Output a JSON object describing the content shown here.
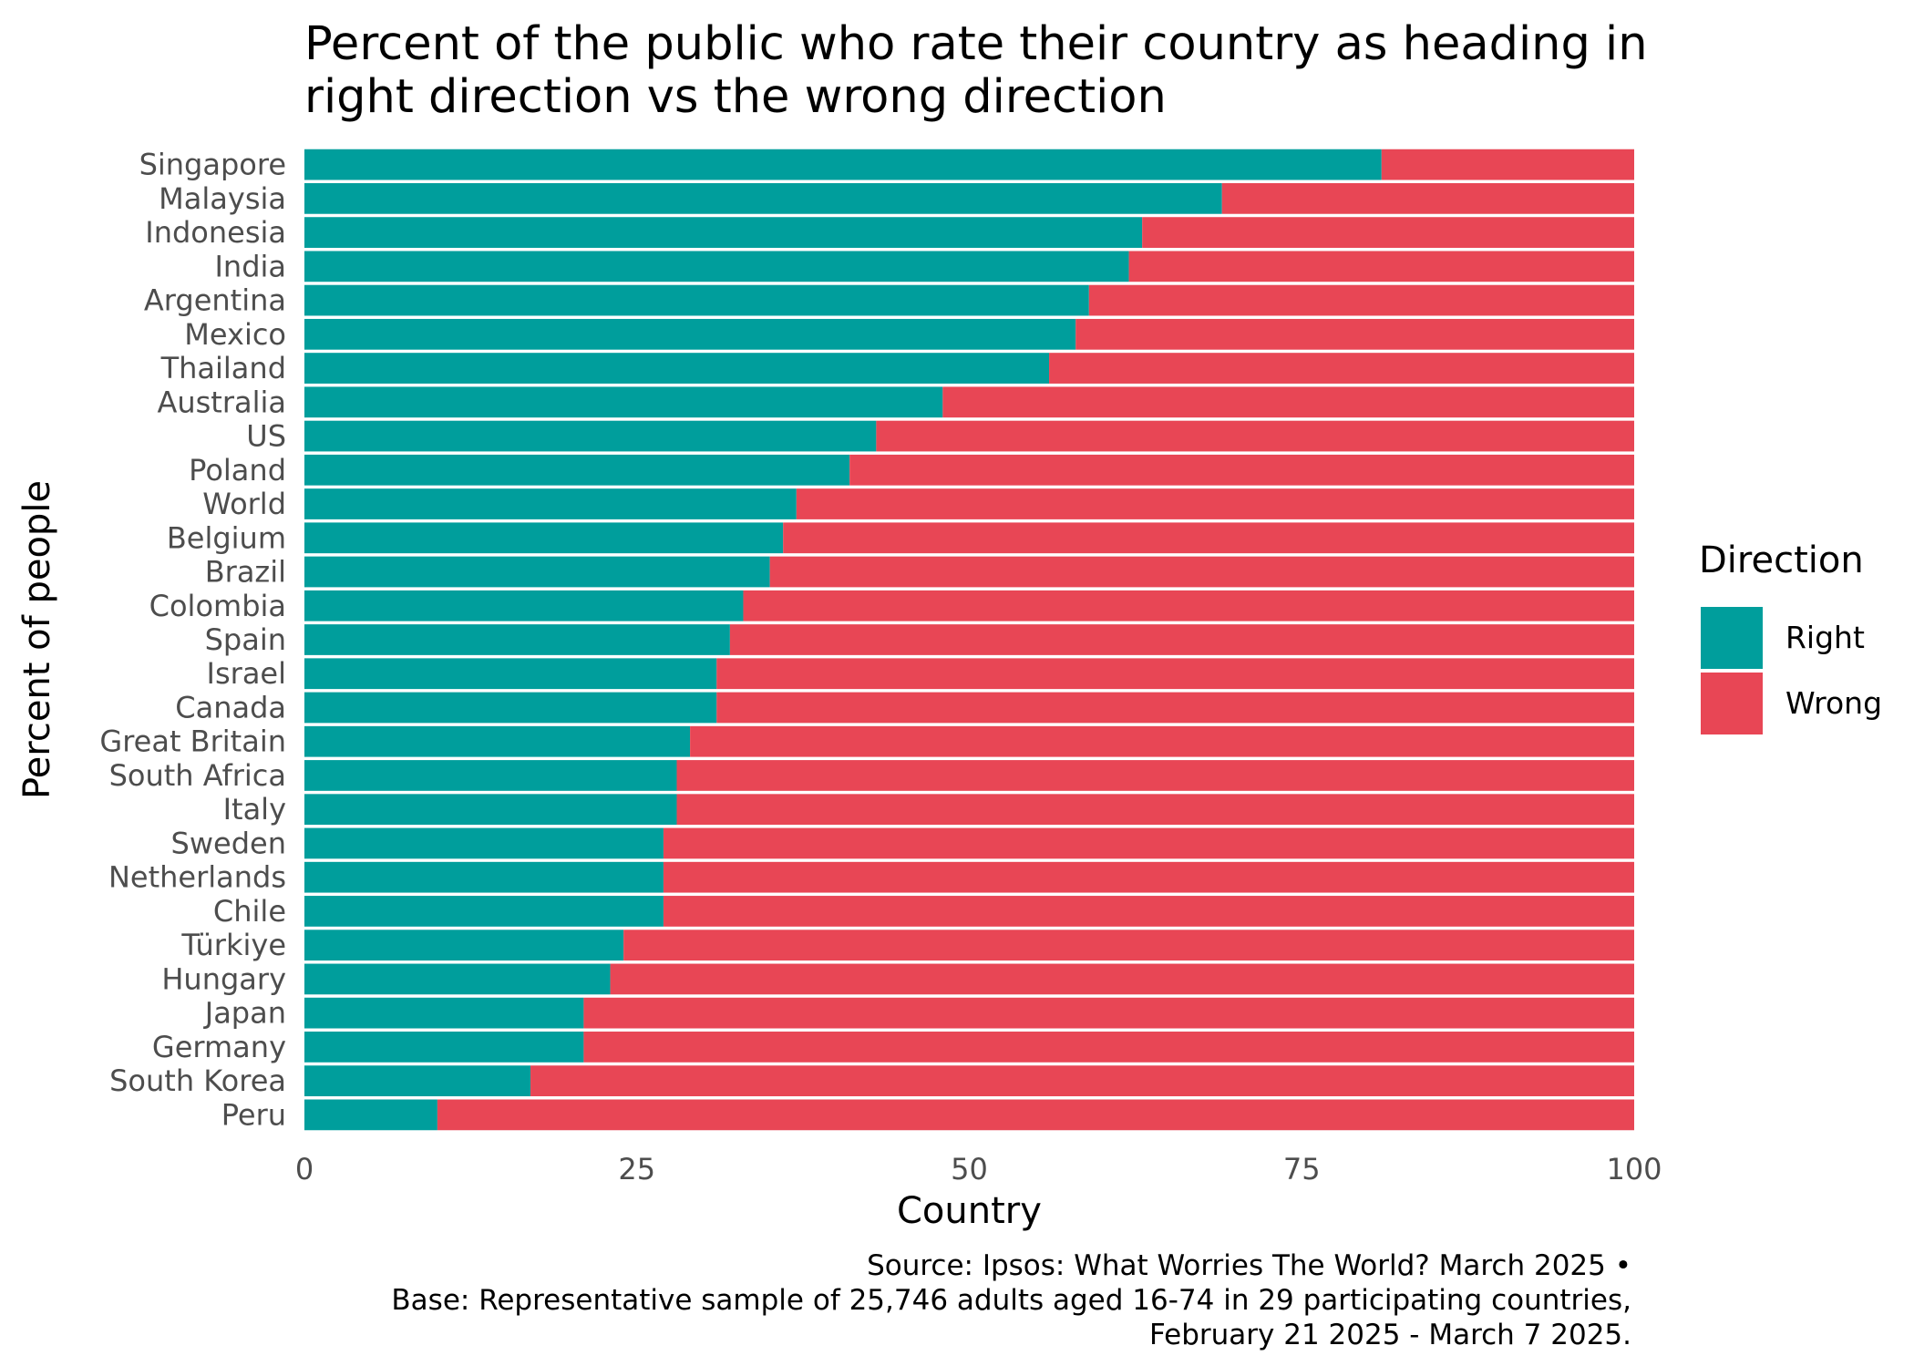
{
  "chart_data": {
    "type": "bar",
    "orientation": "horizontal",
    "stacked": true,
    "title": "Percent of the public who rate their country as heading in right direction vs the wrong direction",
    "title_lines": [
      "Percent of the public who rate their country as heading in",
      "right direction vs the wrong direction"
    ],
    "xlabel": "Country",
    "ylabel": "Percent of people",
    "xlim": [
      0,
      100
    ],
    "x_ticks": [
      0,
      25,
      50,
      75,
      100
    ],
    "grid": false,
    "legend": {
      "title": "Direction",
      "placement": "right"
    },
    "categories": [
      "Singapore",
      "Malaysia",
      "Indonesia",
      "India",
      "Argentina",
      "Mexico",
      "Thailand",
      "Australia",
      "US",
      "Poland",
      "World",
      "Belgium",
      "Brazil",
      "Colombia",
      "Spain",
      "Israel",
      "Canada",
      "Great Britain",
      "South Africa",
      "Italy",
      "Sweden",
      "Netherlands",
      "Chile",
      "Türkiye",
      "Hungary",
      "Japan",
      "Germany",
      "South Korea",
      "Peru"
    ],
    "series": [
      {
        "name": "Right",
        "color": "#009e9c",
        "values": [
          81,
          69,
          63,
          62,
          59,
          58,
          56,
          48,
          43,
          41,
          37,
          36,
          35,
          33,
          32,
          31,
          31,
          29,
          28,
          28,
          27,
          27,
          27,
          24,
          23,
          21,
          21,
          17,
          10
        ]
      },
      {
        "name": "Wrong",
        "color": "#e84655",
        "values": [
          19,
          31,
          37,
          38,
          41,
          42,
          44,
          52,
          57,
          59,
          63,
          64,
          65,
          67,
          68,
          69,
          69,
          71,
          72,
          72,
          73,
          73,
          73,
          76,
          77,
          79,
          79,
          83,
          90
        ]
      }
    ],
    "caption_lines": [
      "Source: Ipsos: What Worries The World? March 2025 •",
      "Base: Representative sample of 25,746 adults aged 16-74 in 29 participating countries,",
      "February 21 2025 - March 7 2025."
    ]
  }
}
